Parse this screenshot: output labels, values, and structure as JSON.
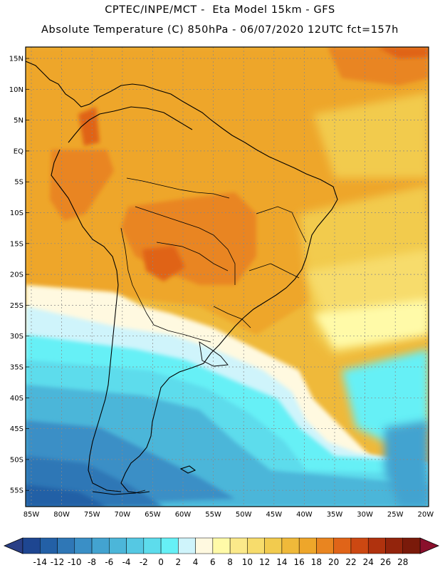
{
  "title_line1": "CPTEC/INPE/MCT -  Eta Model 15km - GFS",
  "title_line2": "Absolute Temperature (C) 850hPa - 06/07/2020 12UTC fct=157h",
  "lat_labels": [
    "15N",
    "10N",
    "5N",
    "EQ",
    "5S",
    "10S",
    "15S",
    "20S",
    "25S",
    "30S",
    "35S",
    "40S",
    "45S",
    "50S",
    "55S"
  ],
  "lon_labels": [
    "85W",
    "80W",
    "75W",
    "70W",
    "65W",
    "60W",
    "55W",
    "50W",
    "45W",
    "40W",
    "35W",
    "30W",
    "25W",
    "20W"
  ],
  "colorbar": {
    "labels": [
      "-14",
      "-12",
      "-10",
      "-8",
      "-6",
      "-4",
      "-2",
      "0",
      "2",
      "4",
      "6",
      "8",
      "10",
      "12",
      "14",
      "16",
      "18",
      "20",
      "22",
      "24",
      "26",
      "28"
    ],
    "colors": [
      "#1e4691",
      "#2360a6",
      "#2f77b6",
      "#3a8fc6",
      "#43a3d0",
      "#4cb6d9",
      "#55c8e3",
      "#5ddcec",
      "#66f0f6",
      "#cff4fb",
      "#fff9e0",
      "#fffaa8",
      "#fbe98a",
      "#f7dc6c",
      "#f2cb4e",
      "#efb93a",
      "#eea62a",
      "#e98520",
      "#e06418",
      "#cc4812",
      "#b0320e",
      "#93240c",
      "#7a1a0a"
    ],
    "low_color": "#2a3f86",
    "high_color": "#8a0f2c"
  }
}
